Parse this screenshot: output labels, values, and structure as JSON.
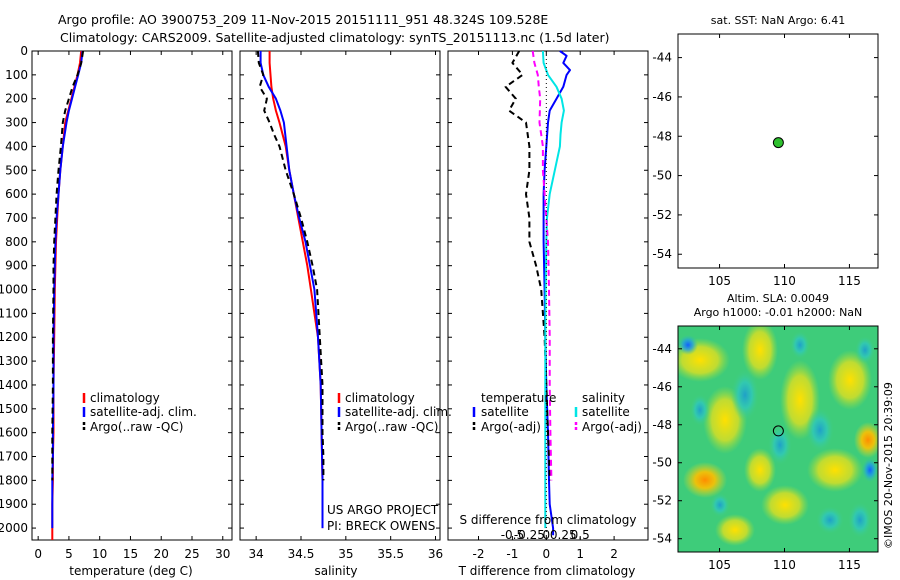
{
  "header": {
    "line1": "Argo profile: AO 3900753_209 11-Nov-2015 20151111_951 48.324S 109.528E",
    "line2": "Climatology: CARS2009. Satellite-adjusted climatology: synTS_20151113.nc (1.5d later)"
  },
  "colors": {
    "climatology": "#ff0000",
    "satellite": "#0000ff",
    "argo": "#000000",
    "salinity_satellite": "#00e5e5",
    "salinity_argo": "#ff00ff",
    "float_marker": "#2ec02e"
  },
  "chart_data": [
    {
      "type": "line",
      "id": "temperature_profile",
      "xlabel": "temperature (deg C)",
      "xticks": [
        0,
        5,
        10,
        15,
        20,
        25,
        30
      ],
      "xlim": [
        -1,
        31.5
      ],
      "ylim": [
        2050,
        0
      ],
      "yticks": [
        0,
        100,
        200,
        300,
        400,
        500,
        600,
        700,
        800,
        900,
        1000,
        1100,
        1200,
        1300,
        1400,
        1500,
        1600,
        1700,
        1800,
        1900,
        2000
      ],
      "series": [
        {
          "name": "climatology",
          "color": "#ff0000",
          "style": "solid",
          "x": [
            7.0,
            6.8,
            6.4,
            5.9,
            5.4,
            4.9,
            4.4,
            4.0,
            3.6,
            3.3,
            3.1,
            2.9,
            2.8,
            2.7,
            2.6,
            2.5,
            2.5,
            2.4,
            2.4,
            2.3,
            2.3,
            2.3
          ],
          "y": [
            0,
            50,
            100,
            150,
            200,
            250,
            300,
            400,
            500,
            600,
            700,
            800,
            900,
            1000,
            1200,
            1400,
            1600,
            1700,
            1800,
            1900,
            2000,
            2050
          ]
        },
        {
          "name": "satellite-adj. clim.",
          "color": "#0000ff",
          "style": "solid",
          "x": [
            7.2,
            7.0,
            6.5,
            6.0,
            5.5,
            5.0,
            4.6,
            4.0,
            3.6,
            3.3,
            3.0,
            2.8,
            2.7,
            2.6,
            2.5,
            2.5,
            2.4,
            2.4,
            2.3,
            2.3,
            2.3
          ],
          "y": [
            0,
            50,
            100,
            150,
            200,
            250,
            300,
            400,
            500,
            600,
            700,
            800,
            900,
            1000,
            1200,
            1400,
            1600,
            1700,
            1800,
            1900,
            2000
          ]
        },
        {
          "name": "Argo(..raw -QC)",
          "color": "#000000",
          "style": "dashed",
          "x": [
            7.3,
            7.0,
            6.4,
            5.6,
            5.0,
            4.4,
            4.0,
            3.7,
            3.3,
            3.0,
            2.8,
            2.6,
            2.5,
            2.5,
            2.4,
            2.4,
            2.3,
            2.3,
            2.3
          ],
          "y": [
            0,
            50,
            100,
            150,
            200,
            250,
            300,
            400,
            500,
            600,
            700,
            800,
            900,
            1000,
            1200,
            1400,
            1600,
            1700,
            1800
          ]
        }
      ],
      "legend": [
        "climatology",
        "satellite-adj. clim.",
        "Argo(..raw -QC)"
      ],
      "legend_placement": "lower-center"
    },
    {
      "type": "line",
      "id": "salinity_profile",
      "xlabel": "salinity",
      "xticks": [
        34,
        34.5,
        35,
        35.5,
        36
      ],
      "xlim": [
        33.82,
        36.05
      ],
      "ylim": [
        2050,
        0
      ],
      "annotation": [
        "US ARGO PROJECT",
        "PI: BRECK OWENS"
      ],
      "series": [
        {
          "name": "climatology",
          "color": "#ff0000",
          "style": "solid",
          "x": [
            34.15,
            34.15,
            34.16,
            34.17,
            34.19,
            34.22,
            34.26,
            34.33,
            34.37,
            34.42,
            34.47,
            34.52,
            34.57,
            34.61,
            34.65,
            34.69,
            34.72,
            34.73,
            34.74,
            34.74,
            34.74
          ],
          "y": [
            0,
            50,
            100,
            150,
            200,
            250,
            300,
            400,
            500,
            600,
            700,
            800,
            900,
            1000,
            1100,
            1200,
            1400,
            1600,
            1800,
            1900,
            2000
          ]
        },
        {
          "name": "satellite-adj. clim.",
          "color": "#0000ff",
          "style": "solid",
          "x": [
            34.05,
            34.05,
            34.08,
            34.14,
            34.22,
            34.27,
            34.31,
            34.34,
            34.37,
            34.42,
            34.48,
            34.55,
            34.6,
            34.65,
            34.69,
            34.72,
            34.73,
            34.74,
            34.74,
            34.74
          ],
          "y": [
            0,
            50,
            100,
            150,
            200,
            250,
            300,
            400,
            500,
            600,
            700,
            800,
            900,
            1000,
            1200,
            1400,
            1600,
            1800,
            1900,
            2000
          ]
        },
        {
          "name": "Argo(..raw -QC)",
          "color": "#000000",
          "style": "dashed",
          "x": [
            34.02,
            34.03,
            34.08,
            34.04,
            34.12,
            34.09,
            34.15,
            34.2,
            34.26,
            34.33,
            34.42,
            34.5,
            34.57,
            34.63,
            34.68,
            34.71,
            34.74,
            34.74,
            34.75,
            34.75
          ],
          "y": [
            0,
            50,
            100,
            150,
            200,
            250,
            300,
            350,
            400,
            500,
            600,
            700,
            800,
            900,
            1000,
            1200,
            1400,
            1600,
            1700,
            1800
          ]
        }
      ],
      "legend": [
        "climatology",
        "satellite-adj. clim.",
        "Argo(..raw -QC)"
      ],
      "legend_placement": "lower-center"
    },
    {
      "type": "line",
      "id": "difference_profile",
      "xlabel_top": "S difference from climatology",
      "xticks_top_labels": [
        "-0.5",
        "-0.25",
        "0",
        "0.25",
        "0.5"
      ],
      "xticks_top_values": [
        -0.5,
        -0.25,
        0,
        0.25,
        0.5
      ],
      "xlabel": "T difference from climatology",
      "xticks": [
        -2,
        -1,
        0,
        1,
        2
      ],
      "xlim": [
        -2.9,
        3.0
      ],
      "legend_groups": [
        {
          "title": "temperature",
          "items": [
            "satellite",
            "Argo(-adj)"
          ]
        },
        {
          "title": "salinity",
          "items": [
            "satellite",
            "Argo(-adj)"
          ]
        }
      ],
      "series": [
        {
          "name": "temperature satellite",
          "color": "#0000ff",
          "style": "solid",
          "x": [
            0.4,
            0.6,
            0.5,
            0.7,
            0.6,
            0.5,
            0.3,
            0.1,
            0.05,
            0.0,
            -0.05,
            -0.08,
            -0.08,
            -0.05,
            -0.03,
            0.0,
            0.05,
            0.08,
            0.1,
            0.15,
            0.2,
            0.2,
            0.2
          ],
          "y": [
            0,
            20,
            50,
            80,
            100,
            150,
            200,
            250,
            300,
            400,
            500,
            600,
            800,
            1000,
            1200,
            1400,
            1600,
            1800,
            1900,
            1950,
            2000,
            2020,
            2030
          ]
        },
        {
          "name": "temperature Argo(-adj)",
          "color": "#000000",
          "style": "dashed",
          "x": [
            -0.8,
            -1.0,
            -0.7,
            -1.2,
            -0.9,
            -1.1,
            -0.6,
            -0.5,
            -0.5,
            -0.5,
            -0.6,
            -0.5,
            -0.5,
            -0.3,
            -0.15,
            -0.05,
            0.0,
            0.05,
            0.08,
            0.1
          ],
          "y": [
            0,
            50,
            100,
            150,
            200,
            250,
            300,
            400,
            450,
            500,
            600,
            700,
            800,
            900,
            1000,
            1200,
            1400,
            1600,
            1700,
            1800
          ]
        },
        {
          "name": "salinity satellite",
          "color": "#00e5e5",
          "style": "solid",
          "x": [
            -0.1,
            -0.08,
            0.05,
            0.3,
            0.45,
            0.52,
            0.45,
            0.42,
            0.4,
            0.25,
            0.1,
            0.02,
            0.0,
            -0.02,
            -0.03,
            -0.03,
            -0.03,
            -0.03
          ],
          "y": [
            0,
            50,
            100,
            150,
            200,
            250,
            300,
            350,
            400,
            500,
            600,
            700,
            800,
            1000,
            1200,
            1500,
            1800,
            2000
          ]
        },
        {
          "name": "salinity Argo(-adj)",
          "color": "#ff00ff",
          "style": "dashed",
          "x": [
            -0.4,
            -0.35,
            -0.25,
            -0.22,
            -0.18,
            -0.2,
            -0.1,
            -0.1,
            -0.05,
            0.0,
            0.05,
            0.08,
            0.1,
            0.1,
            0.12,
            0.15
          ],
          "y": [
            0,
            50,
            100,
            150,
            200,
            300,
            400,
            500,
            600,
            700,
            800,
            1000,
            1200,
            1400,
            1600,
            1800
          ]
        }
      ]
    },
    {
      "type": "scatter",
      "id": "position_map",
      "title": "sat. SST: NaN Argo: 6.41",
      "xticks": [
        105,
        110,
        115
      ],
      "yticks": [
        -44,
        -46,
        -48,
        -50,
        -52,
        -54
      ],
      "xlim": [
        101.8,
        117.2
      ],
      "ylim": [
        -54.7,
        -42.8
      ],
      "points": [
        {
          "x": 109.528,
          "y": -48.324
        }
      ]
    },
    {
      "type": "heatmap",
      "id": "sla_map",
      "title_line1": "Altim. SLA: 0.0049",
      "title_line2": "Argo h1000: -0.01 h2000: NaN",
      "xticks": [
        105,
        110,
        115
      ],
      "yticks": [
        -44,
        -46,
        -48,
        -50,
        -52,
        -54
      ],
      "xlim": [
        101.8,
        117.2
      ],
      "ylim": [
        -54.7,
        -42.8
      ],
      "points": [
        {
          "x": 109.528,
          "y": -48.324
        }
      ]
    }
  ],
  "footer": {
    "stamp": "©IMOS 20-Nov-2015 20:39:09"
  }
}
